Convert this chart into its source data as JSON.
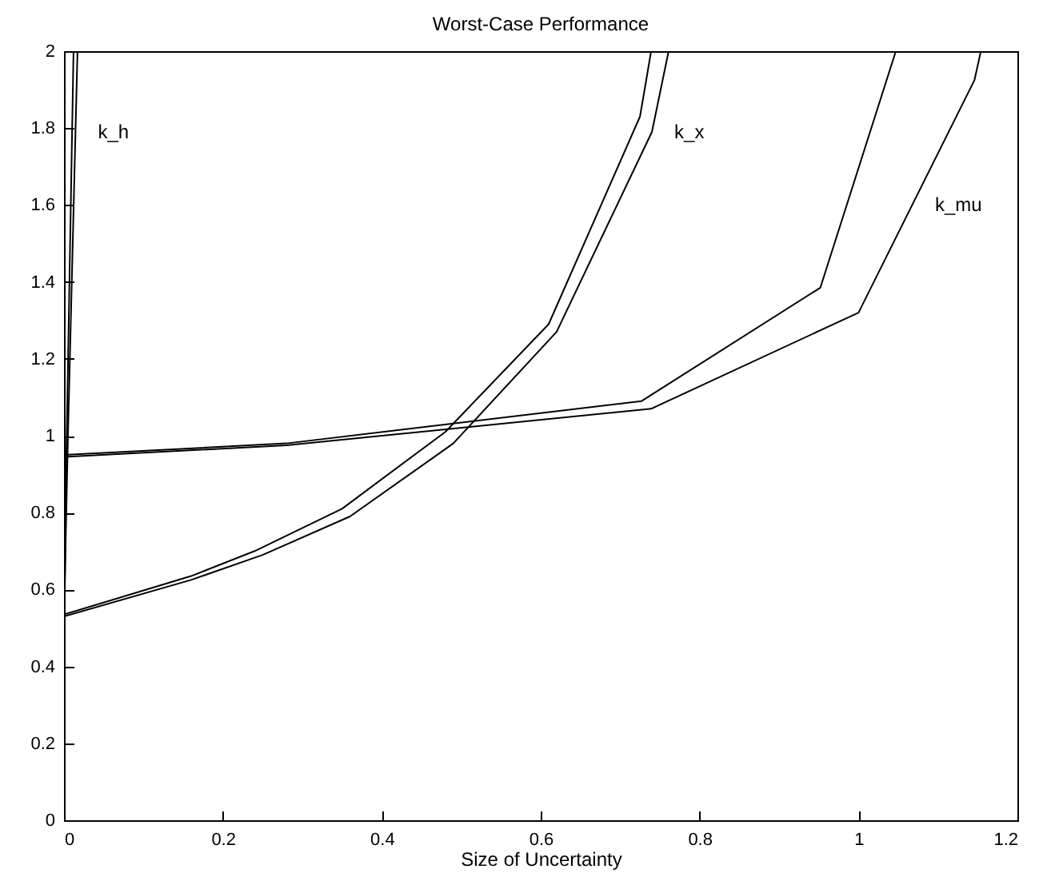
{
  "chart_data": {
    "type": "line",
    "title": "Worst-Case Performance",
    "xlabel": "Size of Uncertainty",
    "xlim": [
      0,
      1.2
    ],
    "xticks": [
      0,
      0.2,
      0.4,
      0.6,
      0.8,
      1,
      1.2
    ],
    "ylim": [
      0,
      2
    ],
    "yticks": [
      0,
      0.2,
      0.4,
      0.6,
      0.8,
      1,
      1.2,
      1.4,
      1.6,
      1.8,
      2
    ],
    "grid": false,
    "legend": false,
    "marker": "none",
    "line_style": "solid",
    "series": [
      {
        "color": "#000000",
        "x": [
          0,
          0.003,
          0.012
        ],
        "values": [
          0.4,
          0.95,
          2
        ]
      },
      {
        "color": "#000000",
        "x": [
          0,
          0.005,
          0.017
        ],
        "values": [
          0.53,
          1.0,
          2
        ]
      },
      {
        "color": "#000000",
        "x": [
          0,
          0.16,
          0.24,
          0.35,
          0.48,
          0.61,
          0.725,
          0.739
        ],
        "values": [
          0.535,
          0.635,
          0.7,
          0.81,
          1.01,
          1.29,
          1.83,
          2
        ]
      },
      {
        "color": "#000000",
        "x": [
          0,
          0.16,
          0.25,
          0.36,
          0.49,
          0.62,
          0.74,
          0.761
        ],
        "values": [
          0.53,
          0.625,
          0.69,
          0.79,
          0.98,
          1.27,
          1.79,
          2
        ]
      },
      {
        "color": "#000000",
        "x": [
          0,
          0.28,
          0.727,
          0.952,
          1.047
        ],
        "values": [
          0.95,
          0.98,
          1.09,
          1.385,
          2
        ]
      },
      {
        "color": "#000000",
        "x": [
          0,
          0.28,
          0.739,
          1.0,
          1.146,
          1.154
        ],
        "values": [
          0.945,
          0.975,
          1.07,
          1.32,
          1.925,
          2
        ]
      }
    ],
    "annotations": [
      {
        "text": "k_h",
        "x": 0.0145,
        "y": 1.79
      },
      {
        "text": "k_x",
        "x": 0.74,
        "y": 1.79
      },
      {
        "text": "k_mu",
        "x": 1.068,
        "y": 1.6
      }
    ]
  }
}
